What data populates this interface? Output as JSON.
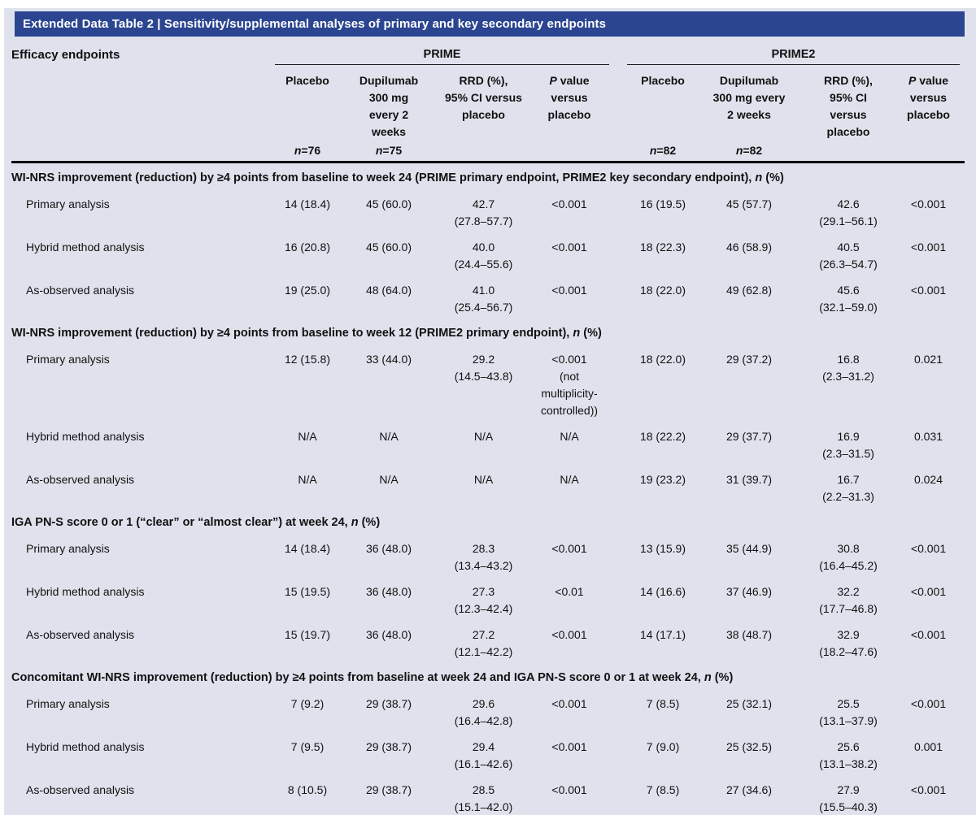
{
  "title": "Extended Data Table 2 | Sensitivity/supplemental analyses of primary and key secondary endpoints",
  "colors": {
    "title_bar": "#2b4590",
    "panel_background": "#dfe2ec",
    "text": "#111111",
    "rule": "#0b0b0b"
  },
  "header": {
    "efficacy_label": "Efficacy endpoints",
    "groups": [
      "PRIME",
      "PRIME2"
    ],
    "n_italic": "n",
    "p_italic": "P",
    "p_rest": " value\nversus\nplacebo",
    "prime": {
      "placebo": "Placebo",
      "dupilumab": "Dupilumab\n300 mg\nevery 2\nweeks",
      "rrd": "RRD (%),\n95% CI versus\nplacebo",
      "n_placebo": "=76",
      "n_dupilumab": "=75"
    },
    "prime2": {
      "placebo": "Placebo",
      "dupilumab": "Dupilumab\n300 mg every\n2 weeks",
      "rrd": "RRD (%),\n95% CI\nversus\nplacebo",
      "n_placebo": "=82",
      "n_dupilumab": "=82"
    }
  },
  "sections": [
    {
      "header_pre": "WI-NRS improvement (reduction) by ≥4 points from baseline to week 24 (PRIME primary endpoint, PRIME2 key secondary endpoint), ",
      "header_italic": "n",
      "header_post": " (%)",
      "rows": [
        {
          "label": "Primary analysis",
          "values": [
            "14 (18.4)",
            "45 (60.0)",
            "42.7\n(27.8–57.7)",
            "<0.001",
            "16 (19.5)",
            "45 (57.7)",
            "42.6\n(29.1–56.1)",
            "<0.001"
          ]
        },
        {
          "label": "Hybrid method analysis",
          "values": [
            "16 (20.8)",
            "45 (60.0)",
            "40.0\n(24.4–55.6)",
            "<0.001",
            "18 (22.3)",
            "46 (58.9)",
            "40.5\n(26.3–54.7)",
            "<0.001"
          ]
        },
        {
          "label": "As-observed analysis",
          "values": [
            "19 (25.0)",
            "48 (64.0)",
            "41.0\n(25.4–56.7)",
            "<0.001",
            "18 (22.0)",
            "49 (62.8)",
            "45.6\n(32.1–59.0)",
            "<0.001"
          ]
        }
      ]
    },
    {
      "header_pre": "WI-NRS improvement (reduction) by ≥4 points from baseline to week 12 (PRIME2 primary endpoint), ",
      "header_italic": "n",
      "header_post": " (%)",
      "rows": [
        {
          "label": "Primary analysis",
          "values": [
            "12 (15.8)",
            "33 (44.0)",
            "29.2\n(14.5–43.8)",
            "<0.001\n(not\nmultiplicity-\ncontrolled))",
            "18 (22.0)",
            "29 (37.2)",
            "16.8\n(2.3–31.2)",
            "0.021"
          ]
        },
        {
          "label": "Hybrid method analysis",
          "values": [
            "N/A",
            "N/A",
            "N/A",
            "N/A",
            "18 (22.2)",
            "29 (37.7)",
            "16.9\n(2.3–31.5)",
            "0.031"
          ]
        },
        {
          "label": "As-observed analysis",
          "values": [
            "N/A",
            "N/A",
            "N/A",
            "N/A",
            "19 (23.2)",
            "31 (39.7)",
            "16.7\n(2.2–31.3)",
            "0.024"
          ]
        }
      ]
    },
    {
      "header_pre": "IGA PN-S score 0 or 1 (“clear” or “almost clear”) at week 24, ",
      "header_italic": "n",
      "header_post": " (%)",
      "rows": [
        {
          "label": "Primary analysis",
          "values": [
            "14 (18.4)",
            "36 (48.0)",
            "28.3\n(13.4–43.2)",
            "<0.001",
            "13 (15.9)",
            "35 (44.9)",
            "30.8\n(16.4–45.2)",
            "<0.001"
          ]
        },
        {
          "label": "Hybrid method analysis",
          "values": [
            "15 (19.5)",
            "36 (48.0)",
            "27.3\n(12.3–42.4)",
            "<0.01",
            "14 (16.6)",
            "37 (46.9)",
            "32.2\n(17.7–46.8)",
            "<0.001"
          ]
        },
        {
          "label": "As-observed analysis",
          "values": [
            "15 (19.7)",
            "36 (48.0)",
            "27.2\n(12.1–42.2)",
            "<0.001",
            "14 (17.1)",
            "38 (48.7)",
            "32.9\n(18.2–47.6)",
            "<0.001"
          ]
        }
      ]
    },
    {
      "header_pre": "Concomitant WI-NRS improvement (reduction) by ≥4 points from baseline at week 24 and IGA PN-S score 0 or 1 at week 24, ",
      "header_italic": "n",
      "header_post": " (%)",
      "rows": [
        {
          "label": "Primary analysis",
          "values": [
            "7 (9.2)",
            "29 (38.7)",
            "29.6\n(16.4–42.8)",
            "<0.001",
            "7 (8.5)",
            "25 (32.1)",
            "25.5\n(13.1–37.9)",
            "<0.001"
          ]
        },
        {
          "label": "Hybrid method analysis",
          "values": [
            "7 (9.5)",
            "29 (38.7)",
            "29.4\n(16.1–42.6)",
            "<0.001",
            "7 (9.0)",
            "25 (32.5)",
            "25.6\n(13.1–38.2)",
            "0.001"
          ]
        },
        {
          "label": "As-observed analysis",
          "values": [
            "8 (10.5)",
            "29 (38.7)",
            "28.5\n(15.1–42.0)",
            "<0.001",
            "7 (8.5)",
            "27 (34.6)",
            "27.9\n(15.5–40.3)",
            "<0.001"
          ]
        }
      ]
    }
  ]
}
